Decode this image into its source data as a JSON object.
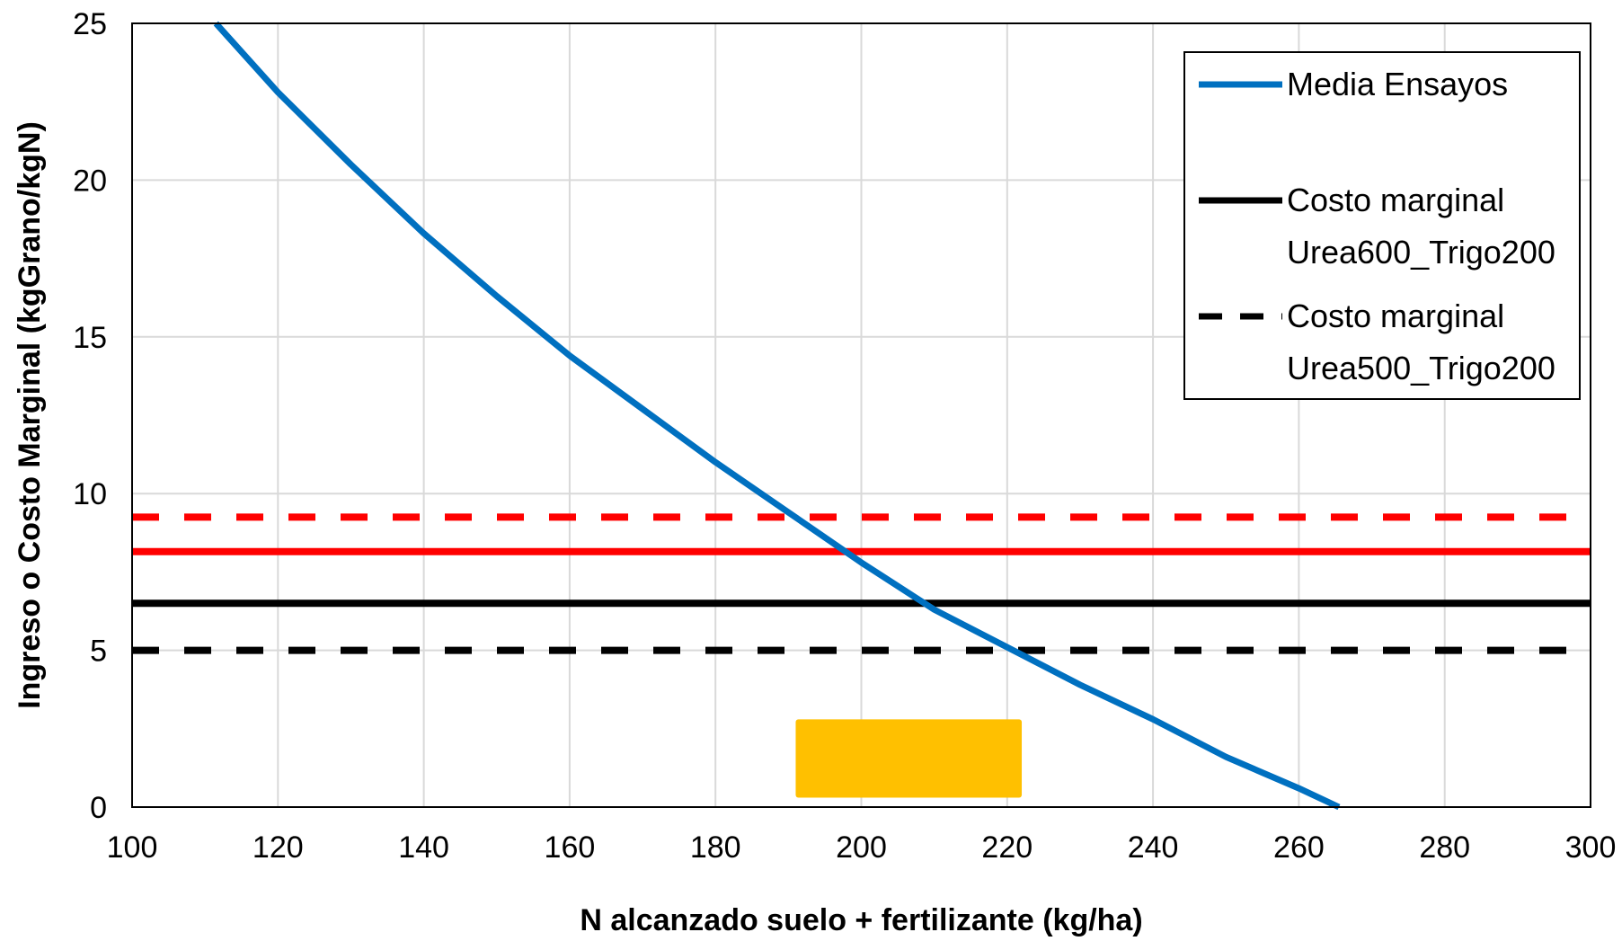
{
  "chart_data": {
    "type": "line",
    "title": "",
    "xlabel": "N alcanzado suelo + fertilizante (kg/ha)",
    "ylabel": "Ingreso o Costo Marginal (kgGrano/kgN)",
    "xlim": [
      100,
      300
    ],
    "ylim": [
      0,
      25
    ],
    "xticks": [
      100,
      120,
      140,
      160,
      180,
      200,
      220,
      240,
      260,
      280,
      300
    ],
    "yticks": [
      0,
      5,
      10,
      15,
      20,
      25
    ],
    "grid": true,
    "legend_position": "top-right",
    "series": [
      {
        "name": "Media Ensayos",
        "color": "#0070C0",
        "style": "solid",
        "x": [
          111.5,
          120,
          130,
          140,
          150,
          160,
          170,
          180,
          190,
          200,
          210,
          220,
          230,
          240,
          250,
          260,
          265.5
        ],
        "y": [
          25,
          22.8,
          20.5,
          18.3,
          16.3,
          14.4,
          12.7,
          11.0,
          9.4,
          7.8,
          6.3,
          5.1,
          3.9,
          2.8,
          1.6,
          0.6,
          0
        ]
      },
      {
        "name": "Costo marginal Urea600_Trigo200",
        "color": "#000000",
        "style": "solid",
        "x": [
          100,
          300
        ],
        "y": [
          6.5,
          6.5
        ]
      },
      {
        "name": "Costo marginal Urea500_Trigo200",
        "color": "#000000",
        "style": "dashed",
        "x": [
          100,
          300
        ],
        "y": [
          5.0,
          5.0
        ]
      },
      {
        "name": "",
        "color": "#FF0000",
        "style": "solid",
        "x": [
          100,
          300
        ],
        "y": [
          8.15,
          8.15
        ]
      },
      {
        "name": "",
        "color": "#FF0000",
        "style": "dashed",
        "x": [
          100,
          300
        ],
        "y": [
          9.25,
          9.25
        ]
      }
    ],
    "highlight_range": {
      "color": "#FFC000",
      "x": [
        191,
        222
      ],
      "y": [
        0.3,
        2.8
      ]
    },
    "legend": [
      {
        "series": 0,
        "lines": [
          "Media Ensayos"
        ]
      },
      {
        "series": 1,
        "lines": [
          "Costo marginal",
          "Urea600_Trigo200"
        ]
      },
      {
        "series": 2,
        "lines": [
          "Costo marginal",
          "Urea500_Trigo200"
        ]
      }
    ]
  }
}
